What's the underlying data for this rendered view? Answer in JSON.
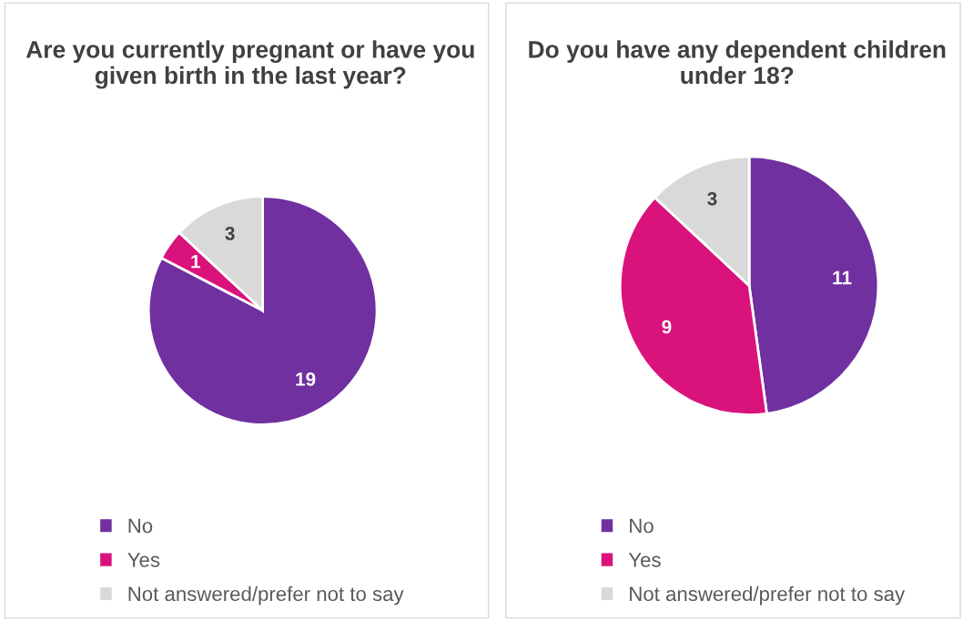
{
  "chart_data": [
    {
      "type": "pie",
      "title": "Are you currently pregnant or have you given birth in the last year?",
      "categories": [
        "No",
        "Yes",
        "Not answered/prefer not to say"
      ],
      "values": [
        19,
        1,
        3
      ],
      "colors": [
        "#7030a0",
        "#d9137b",
        "#d9d9d9"
      ],
      "data_labels": true,
      "legend": "bottom"
    },
    {
      "type": "pie",
      "title": "Do you have any dependent children under 18?",
      "categories": [
        "No",
        "Yes",
        "Not answered/prefer not to say"
      ],
      "values": [
        11,
        9,
        3
      ],
      "colors": [
        "#7030a0",
        "#d9137b",
        "#d9d9d9"
      ],
      "data_labels": true,
      "legend": "bottom"
    }
  ]
}
